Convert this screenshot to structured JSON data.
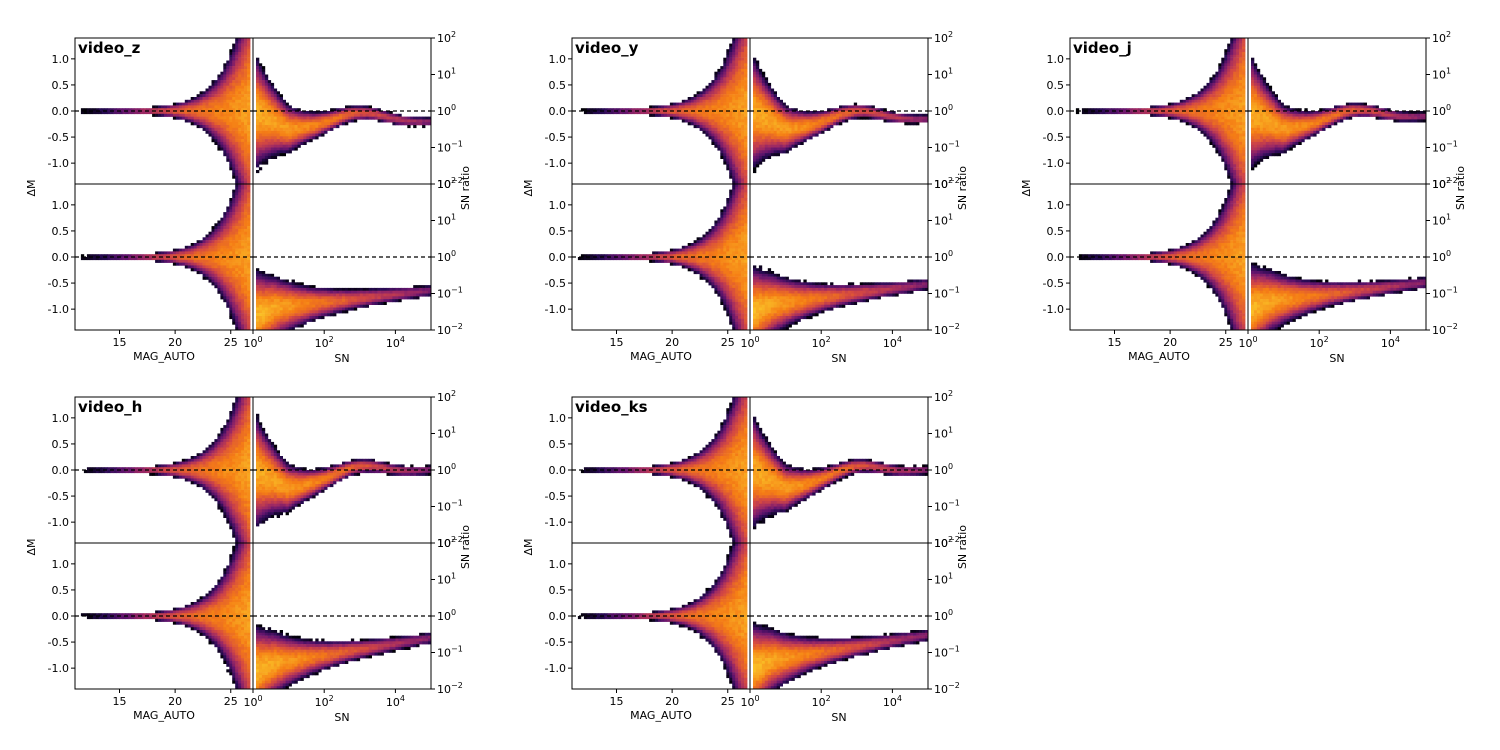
{
  "chart_data": [
    {
      "type": "heatmap",
      "title": "video_z",
      "left_panels": {
        "xlabel": "MAG_AUTO",
        "ylabel": "ΔM",
        "xlim": [
          11,
          27
        ],
        "ylim": [
          -1.4,
          1.4
        ],
        "xticks": [
          15,
          20,
          25
        ],
        "yticks": [
          -1.0,
          -0.5,
          0.0,
          0.5,
          1.0
        ],
        "reference_line_y": 0.0
      },
      "right_panels": {
        "xlabel": "SN",
        "ylabel": "SN ratio",
        "xscale": "log",
        "yscale": "log",
        "xlim": [
          1,
          100000
        ],
        "ylim": [
          0.01,
          100
        ],
        "reference_line_y": 1.0
      },
      "distribution": {
        "top_right_trend_end": 0.5,
        "bottom_right_trend_end": 0.12,
        "bottom_right_low_sn_value": 0.04
      }
    },
    {
      "type": "heatmap",
      "title": "video_y",
      "left_panels": {
        "xlabel": "MAG_AUTO",
        "ylabel": "ΔM",
        "xlim": [
          11,
          27
        ],
        "ylim": [
          -1.4,
          1.4
        ],
        "xticks": [
          15,
          20,
          25
        ],
        "yticks": [
          -1.0,
          -0.5,
          0.0,
          0.5,
          1.0
        ],
        "reference_line_y": 0.0
      },
      "right_panels": {
        "xlabel": "SN",
        "ylabel": "SN ratio",
        "xscale": "log",
        "yscale": "log",
        "xlim": [
          1,
          100000
        ],
        "ylim": [
          0.01,
          100
        ],
        "reference_line_y": 1.0
      },
      "distribution": {
        "top_right_trend_end": 0.6,
        "bottom_right_trend_end": 0.18,
        "bottom_right_low_sn_value": 0.05
      }
    },
    {
      "type": "heatmap",
      "title": "video_j",
      "left_panels": {
        "xlabel": "MAG_AUTO",
        "ylabel": "ΔM",
        "xlim": [
          11,
          27
        ],
        "ylim": [
          -1.4,
          1.4
        ],
        "xticks": [
          15,
          20,
          25
        ],
        "yticks": [
          -1.0,
          -0.5,
          0.0,
          0.5,
          1.0
        ],
        "reference_line_y": 0.0
      },
      "right_panels": {
        "xlabel": "SN",
        "ylabel": "SN ratio",
        "xscale": "log",
        "yscale": "log",
        "xlim": [
          1,
          100000
        ],
        "ylim": [
          0.01,
          100
        ],
        "reference_line_y": 1.0
      },
      "distribution": {
        "top_right_trend_end": 0.7,
        "bottom_right_trend_end": 0.2,
        "bottom_right_low_sn_value": 0.06
      }
    },
    {
      "type": "heatmap",
      "title": "video_h",
      "left_panels": {
        "xlabel": "MAG_AUTO",
        "ylabel": "ΔM",
        "xlim": [
          11,
          27
        ],
        "ylim": [
          -1.4,
          1.4
        ],
        "xticks": [
          15,
          20,
          25
        ],
        "yticks": [
          -1.0,
          -0.5,
          0.0,
          0.5,
          1.0
        ],
        "reference_line_y": 0.0
      },
      "right_panels": {
        "xlabel": "SN",
        "ylabel": "SN ratio",
        "xscale": "log",
        "yscale": "log",
        "xlim": [
          1,
          100000
        ],
        "ylim": [
          0.01,
          100
        ],
        "reference_line_y": 1.0
      },
      "distribution": {
        "top_right_trend_end": 1.0,
        "bottom_right_trend_end": 0.25,
        "bottom_right_low_sn_value": 0.05
      }
    },
    {
      "type": "heatmap",
      "title": "video_ks",
      "left_panels": {
        "xlabel": "MAG_AUTO",
        "ylabel": "ΔM",
        "xlim": [
          11,
          27
        ],
        "ylim": [
          -1.4,
          1.4
        ],
        "xticks": [
          15,
          20,
          25
        ],
        "yticks": [
          -1.0,
          -0.5,
          0.0,
          0.5,
          1.0
        ],
        "reference_line_y": 0.0
      },
      "right_panels": {
        "xlabel": "SN",
        "ylabel": "SN ratio",
        "xscale": "log",
        "yscale": "log",
        "xlim": [
          1,
          100000
        ],
        "ylim": [
          0.01,
          100
        ],
        "reference_line_y": 1.0
      },
      "distribution": {
        "top_right_trend_end": 1.0,
        "bottom_right_trend_end": 0.3,
        "bottom_right_low_sn_value": 0.06
      }
    }
  ]
}
